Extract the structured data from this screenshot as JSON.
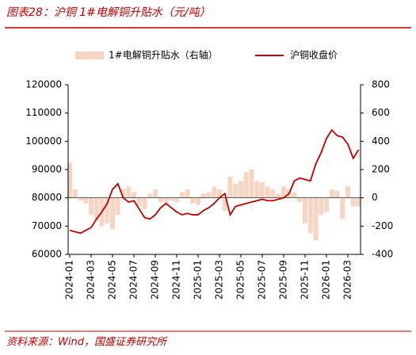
{
  "chart_data": {
    "type": "bar-line",
    "title": "图表28：沪铜 1#电解铜升贴水（元/吨）",
    "source": "资料来源：Wind，国盛证券研究所",
    "categories": [
      "2024-01",
      null,
      null,
      null,
      "2024-03",
      null,
      null,
      null,
      "2024-05",
      null,
      null,
      null,
      "2024-07",
      null,
      null,
      null,
      "2024-09",
      null,
      null,
      null,
      "2024-11",
      null,
      null,
      null,
      "2025-01",
      null,
      null,
      null,
      "2025-03",
      null,
      null,
      null,
      "2025-05",
      null,
      null,
      null,
      "2025-07",
      null,
      null,
      null,
      "2025-09",
      null,
      null,
      null,
      "2025-11",
      null,
      null,
      null,
      "2026-01",
      null,
      null,
      null,
      "2026-03",
      null,
      null
    ],
    "series": [
      {
        "name": "1#电解铜升贴水（右轴）",
        "color": "#f6d5c3",
        "axis": "y2",
        "values": [
          250,
          60,
          -20,
          -40,
          -120,
          -160,
          -200,
          -180,
          -220,
          -120,
          60,
          80,
          40,
          -60,
          -80,
          30,
          60,
          -30,
          -40,
          -20,
          -30,
          40,
          60,
          -40,
          -50,
          30,
          40,
          80,
          60,
          -90,
          150,
          100,
          120,
          180,
          200,
          120,
          110,
          80,
          60,
          30,
          80,
          60,
          40,
          -30,
          -180,
          -250,
          -300,
          -120,
          -100,
          60,
          50,
          -150,
          80,
          -60,
          -60
        ]
      },
      {
        "name": "沪铜收盘价",
        "color": "#c00000",
        "values": [
          68500,
          68000,
          67500,
          68500,
          69500,
          72500,
          75000,
          78000,
          83000,
          85000,
          80000,
          78500,
          79000,
          76000,
          73000,
          72500,
          74000,
          76500,
          78000,
          76500,
          75000,
          74000,
          74500,
          74000,
          74000,
          75500,
          76500,
          78000,
          80000,
          81500,
          74000,
          77000,
          77500,
          78000,
          78500,
          79000,
          79500,
          79000,
          79000,
          79500,
          80000,
          81500,
          86000,
          87000,
          86500,
          86000,
          92000,
          96000,
          101000,
          104000,
          102000,
          101500,
          99000,
          94000,
          97000
        ]
      }
    ],
    "ylim": [
      60000,
      120000
    ],
    "yticks": [
      60000,
      70000,
      80000,
      90000,
      100000,
      110000,
      120000
    ],
    "y2lim": [
      -400,
      800
    ],
    "y2ticks": [
      -400,
      -200,
      0,
      200,
      400,
      600,
      800
    ],
    "legend": "top"
  }
}
